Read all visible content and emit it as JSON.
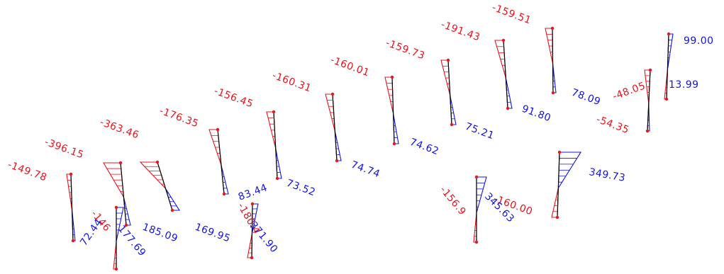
{
  "colors": {
    "negative": "#e8141e",
    "positive": "#1414e6",
    "member": "#000000",
    "node": "#e8141e"
  },
  "labels": [
    {
      "id": "m1-top",
      "text": "-149.78",
      "sign": "neg"
    },
    {
      "id": "m2-top",
      "text": "-396.15",
      "sign": "neg"
    },
    {
      "id": "m3-top",
      "text": "-363.46",
      "sign": "neg"
    },
    {
      "id": "m4-top",
      "text": "-176.35",
      "sign": "neg"
    },
    {
      "id": "m5-top",
      "text": "-156.45",
      "sign": "neg"
    },
    {
      "id": "m6-top",
      "text": "-160.31",
      "sign": "neg"
    },
    {
      "id": "m7-top",
      "text": "-160.01",
      "sign": "neg"
    },
    {
      "id": "m8-top",
      "text": "-159.73",
      "sign": "neg"
    },
    {
      "id": "m9-top",
      "text": "-191.43",
      "sign": "neg"
    },
    {
      "id": "m10-top",
      "text": "-159.51",
      "sign": "neg"
    },
    {
      "id": "m11-top",
      "text": "-48.05",
      "sign": "neg"
    },
    {
      "id": "m11-bottom",
      "text": "-54.35",
      "sign": "neg"
    },
    {
      "id": "m12-right",
      "text": "-160.00",
      "sign": "neg"
    },
    {
      "id": "m13-left",
      "text": "-156.9",
      "sign": "neg"
    },
    {
      "id": "m14-left",
      "text": "-180.4",
      "sign": "neg"
    },
    {
      "id": "m15-left",
      "text": "-146",
      "sign": "neg"
    },
    {
      "id": "m1-bottom",
      "text": "72.44",
      "sign": "pos"
    },
    {
      "id": "m15-right",
      "text": "177.69",
      "sign": "pos"
    },
    {
      "id": "m3-bottom",
      "text": "185.09",
      "sign": "pos"
    },
    {
      "id": "m4-bottom",
      "text": "169.95",
      "sign": "pos"
    },
    {
      "id": "m14-top",
      "text": "83.44",
      "sign": "pos"
    },
    {
      "id": "m14-right",
      "text": "371.90",
      "sign": "pos"
    },
    {
      "id": "m5-bottom",
      "text": "73.52",
      "sign": "pos"
    },
    {
      "id": "m6-bottom",
      "text": "74.74",
      "sign": "pos"
    },
    {
      "id": "m7-bottom",
      "text": "74.62",
      "sign": "pos"
    },
    {
      "id": "m8-bottom",
      "text": "75.21",
      "sign": "pos"
    },
    {
      "id": "m9-bottom",
      "text": "91.80",
      "sign": "pos"
    },
    {
      "id": "m10-bottom",
      "text": "78.09",
      "sign": "pos"
    },
    {
      "id": "m16-bottom",
      "text": "13.99",
      "sign": "pos"
    },
    {
      "id": "m16-top",
      "text": "99.00",
      "sign": "pos"
    },
    {
      "id": "m12-left",
      "text": "349.73",
      "sign": "pos"
    },
    {
      "id": "m13-right",
      "text": "345.63",
      "sign": "pos"
    }
  ]
}
